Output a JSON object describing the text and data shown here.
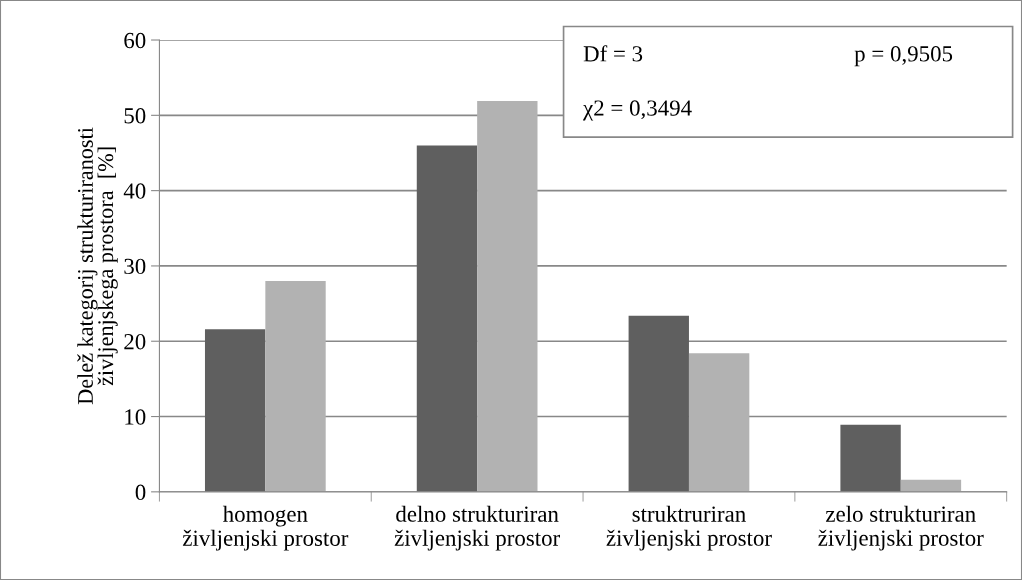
{
  "chart_data": {
    "type": "bar",
    "ylabel": "Delež kategorij strukturiranosti\nživljenjskega prostora  [%]",
    "categories": [
      "homogen\nživljenjski prostor",
      "delno strukturiran\nživljenjski prostor",
      "struktruriran\nživljenjski prostor",
      "zelo strukturiran\nživljenjski prostor"
    ],
    "series": [
      {
        "color": "#5f5f5f",
        "values": [
          21.6,
          46.0,
          23.4,
          8.9
        ]
      },
      {
        "color": "#b2b2b2",
        "values": [
          28.0,
          51.9,
          18.4,
          1.6
        ]
      }
    ],
    "ylim": [
      0,
      60
    ],
    "yticks": [
      0,
      10,
      20,
      30,
      40,
      50,
      60
    ],
    "grid": "y",
    "annotations": [
      "Df = 3",
      "p = 0,9505",
      "χ2 = 0,3494"
    ]
  }
}
